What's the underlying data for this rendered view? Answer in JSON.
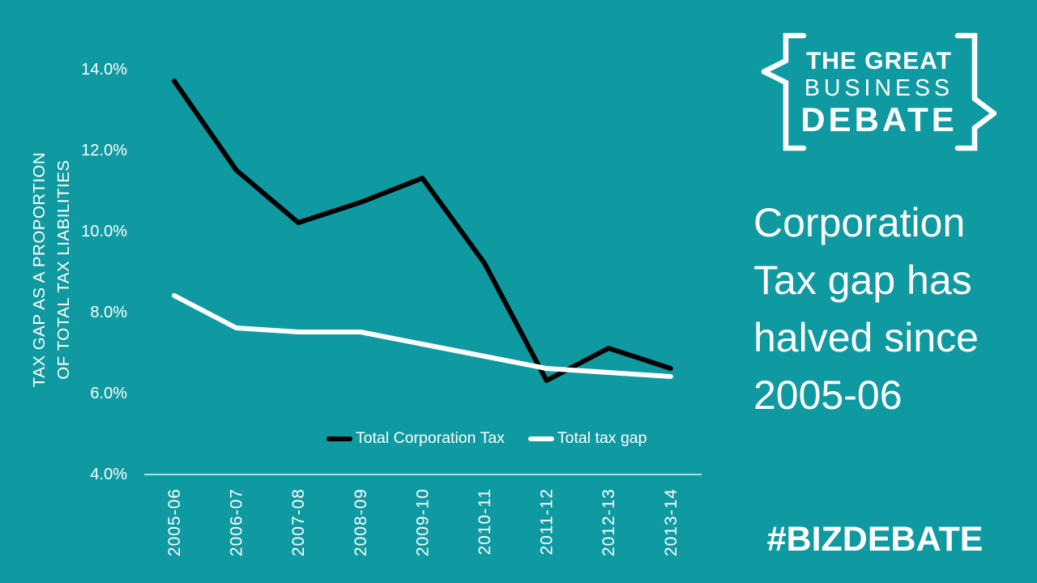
{
  "page": {
    "background_color": "#0F99A1",
    "text_color": "#FFFFFF"
  },
  "logo": {
    "lines": [
      "THE GREAT",
      "BUSINESS",
      "DEBATE"
    ]
  },
  "headline": {
    "text": "Corporation Tax gap has halved since 2005-06",
    "lines": [
      "Corporation",
      "Tax gap has",
      "halved since",
      "2005-06"
    ]
  },
  "hashtag": "#BIZDEBATE",
  "chart_data": {
    "type": "line",
    "title": "",
    "xlabel": "",
    "ylabel": "TAX GAP AS A PROPORTION OF TOTAL TAX LIABILITIES",
    "ylabel_lines": [
      "TAX GAP AS A PROPORTION",
      "OF TOTAL TAX LIABILITIES"
    ],
    "ylim": [
      4,
      14
    ],
    "grid": false,
    "legend_position": "bottom-inside",
    "yticks": [
      {
        "value": 14,
        "label": "14.0%"
      },
      {
        "value": 12,
        "label": "12.0%"
      },
      {
        "value": 10,
        "label": "10.0%"
      },
      {
        "value": 8,
        "label": "8.0%"
      },
      {
        "value": 6,
        "label": "6.0%"
      },
      {
        "value": 4,
        "label": "4.0%"
      }
    ],
    "categories": [
      "2005-06",
      "2006-07",
      "2007-08",
      "2008-09",
      "2009-10",
      "2010-11",
      "2011-12",
      "2012-13",
      "2013-14"
    ],
    "series": [
      {
        "name": "Total Corporation Tax",
        "color": "#000000",
        "values": [
          13.7,
          11.5,
          10.2,
          10.7,
          11.3,
          9.2,
          6.3,
          7.1,
          6.6
        ]
      },
      {
        "name": "Total tax gap",
        "color": "#FFFFFF",
        "values": [
          8.4,
          7.6,
          7.5,
          7.5,
          7.2,
          6.9,
          6.6,
          6.5,
          6.4
        ]
      }
    ]
  }
}
